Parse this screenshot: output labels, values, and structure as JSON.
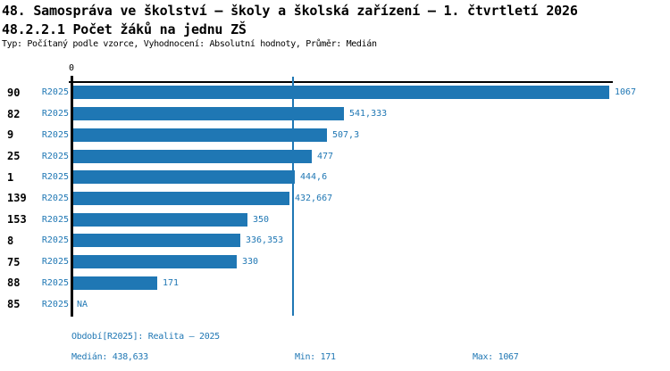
{
  "header": {
    "title": "48. Samospráva ve školství – školy a školská zařízení – 1. čtvrtletí 2026",
    "subtitle": "48.2.2.1 Počet žáků na jednu ZŠ",
    "meta": "Typ: Počítaný podle vzorce, Vyhodnocení: Absolutní hodnoty, Průměr: Medián"
  },
  "colors": {
    "accent_blue": "#1f77b4",
    "axis_black": "#000000"
  },
  "chart_data": {
    "type": "bar",
    "orientation": "horizontal",
    "grid": false,
    "legend_position": "none",
    "series_name": "R2025",
    "categories": [
      "90",
      "82",
      "9",
      "25",
      "1",
      "139",
      "153",
      "8",
      "75",
      "88",
      "85"
    ],
    "values": [
      1067,
      541.333,
      507.3,
      477,
      444.6,
      432.667,
      350,
      336.353,
      330,
      171,
      null
    ],
    "value_labels": [
      "1067",
      "541,333",
      "507,3",
      "477",
      "444,6",
      "432,667",
      "350",
      "336,353",
      "330",
      "171",
      "NA"
    ],
    "xlabel": "",
    "ylabel": "",
    "xlim": [
      0,
      1067
    ],
    "x_zero_tick_label": "0",
    "median_value": 438.633
  },
  "footer": {
    "period": "Období[R2025]: Realita – 2025",
    "median": "Medián: 438,633",
    "min": "Min: 171",
    "max": "Max: 1067"
  }
}
